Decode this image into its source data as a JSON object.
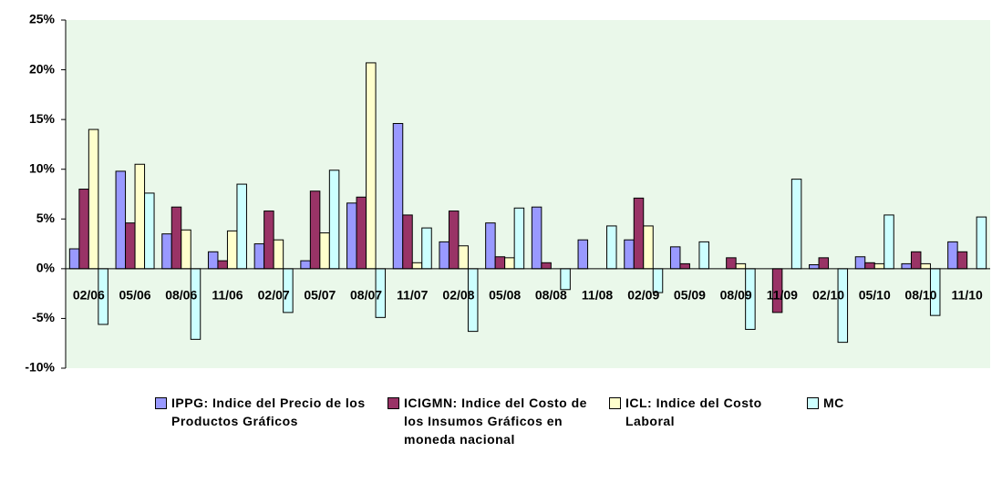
{
  "chart_data": {
    "type": "bar",
    "categories": [
      "02/06",
      "05/06",
      "08/06",
      "11/06",
      "02/07",
      "05/07",
      "08/07",
      "11/07",
      "02/08",
      "05/08",
      "08/08",
      "11/08",
      "02/09",
      "05/09",
      "08/09",
      "11/09",
      "02/10",
      "05/10",
      "08/10",
      "11/10"
    ],
    "series": [
      {
        "name": "IPPG: Indice del Precio de los Productos Gráficos",
        "color": "#9999ff",
        "values": [
          2,
          9.8,
          3.5,
          1.7,
          2.5,
          0.8,
          6.6,
          14.6,
          2.7,
          4.6,
          6.2,
          2.9,
          2.9,
          2.2,
          0,
          0,
          0.4,
          1.2,
          0.5,
          2.7
        ]
      },
      {
        "name": "ICIGMN: Indice del Costo de los Insumos Gráficos en moneda nacional",
        "color": "#993366",
        "values": [
          8,
          4.6,
          6.2,
          0.8,
          5.8,
          7.8,
          7.2,
          5.4,
          5.8,
          1.2,
          0.6,
          0,
          7.1,
          0.5,
          1.1,
          -4.4,
          1.1,
          0.6,
          1.7,
          1.7
        ]
      },
      {
        "name": "ICL: Indice del Costo Laboral",
        "color": "#ffffcc",
        "values": [
          14,
          10.5,
          3.9,
          3.8,
          2.9,
          3.6,
          20.7,
          0.6,
          2.3,
          1.1,
          0,
          0,
          4.3,
          0,
          0.5,
          0,
          0,
          0.5,
          0.5,
          0
        ]
      },
      {
        "name": "MC",
        "color": "#ccffff",
        "values": [
          -5.6,
          7.6,
          -7.1,
          8.5,
          -4.4,
          9.9,
          -4.9,
          4.1,
          -6.3,
          6.1,
          -2.1,
          4.3,
          -2.4,
          2.7,
          -6.1,
          9,
          -7.4,
          5.4,
          -4.7,
          5.2
        ]
      }
    ],
    "ylim": [
      -10,
      25
    ],
    "yticks": [
      {
        "value": -10,
        "label": "-10%"
      },
      {
        "value": -5,
        "label": "-5%"
      },
      {
        "value": 0,
        "label": "0%"
      },
      {
        "value": 5,
        "label": "5%"
      },
      {
        "value": 10,
        "label": "10%"
      },
      {
        "value": 15,
        "label": "15%"
      },
      {
        "value": 20,
        "label": "20%"
      },
      {
        "value": 25,
        "label": "25%"
      }
    ],
    "grid": false,
    "plot_background": "#eaf8ea"
  }
}
